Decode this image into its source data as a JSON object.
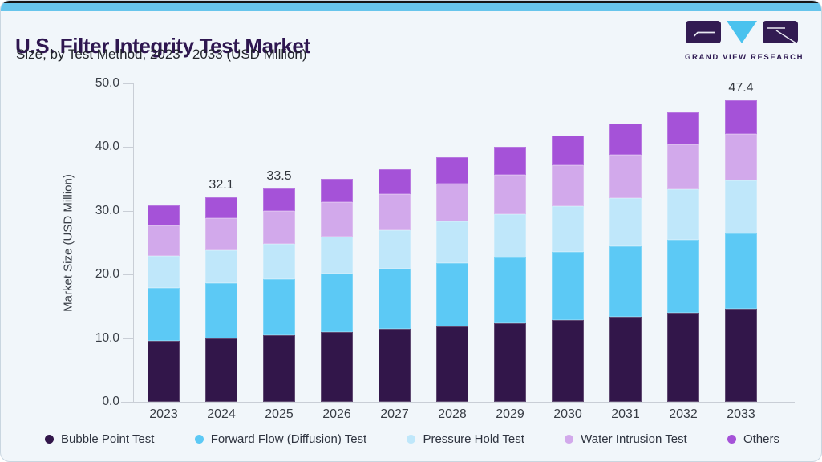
{
  "header": {
    "title": "U.S. Filter Integrity Test Market",
    "subtitle": "Size, by Test Method, 2023 - 2033 (USD Million)"
  },
  "logo": {
    "brand": "GRAND VIEW RESEARCH",
    "colors": {
      "block": "#321B52",
      "triangle": "#4AC2EE",
      "text": "#2E1A52"
    }
  },
  "palette": {
    "card_background": "#F1F6FA",
    "top_accent_bar": "#67C5EC",
    "title_color": "#2E1650",
    "axis_line": "#C9CED6",
    "label_text": "#383D45"
  },
  "chart_data": {
    "type": "bar",
    "stacked": true,
    "title": "U.S. Filter Integrity Test Market Size, by Test Method, 2023 - 2033 (USD Million)",
    "xlabel": "",
    "ylabel": "Market Size (USD Million)",
    "ylim": [
      0,
      50
    ],
    "yticks": [
      0,
      10,
      20,
      30,
      40,
      50
    ],
    "ytick_labels": [
      "0.0",
      "10.0",
      "20.0",
      "30.0",
      "40.0",
      "50.0"
    ],
    "grid": "ticks-only",
    "legend_position": "bottom",
    "categories": [
      "2023",
      "2024",
      "2025",
      "2026",
      "2027",
      "2028",
      "2029",
      "2030",
      "2031",
      "2032",
      "2033"
    ],
    "series": [
      {
        "name": "Bubble Point Test",
        "color": "#32164A",
        "values": [
          9.6,
          10.0,
          10.4,
          10.9,
          11.4,
          11.9,
          12.4,
          12.9,
          13.4,
          14.0,
          14.6
        ]
      },
      {
        "name": "Forward Flow (Diffusion) Test",
        "color": "#5CC9F5",
        "values": [
          8.3,
          8.6,
          8.9,
          9.2,
          9.5,
          9.9,
          10.3,
          10.6,
          11.0,
          11.4,
          11.8
        ]
      },
      {
        "name": "Pressure Hold Test",
        "color": "#BFE7FA",
        "values": [
          5.0,
          5.2,
          5.5,
          5.8,
          6.1,
          6.5,
          6.8,
          7.2,
          7.6,
          8.0,
          8.4
        ]
      },
      {
        "name": "Water Intrusion Test",
        "color": "#D2A9EB",
        "values": [
          4.8,
          5.0,
          5.2,
          5.4,
          5.6,
          5.9,
          6.2,
          6.5,
          6.8,
          7.0,
          7.3
        ]
      },
      {
        "name": "Others",
        "color": "#A552D8",
        "values": [
          3.2,
          3.3,
          3.5,
          3.7,
          3.9,
          4.2,
          4.4,
          4.6,
          4.9,
          5.1,
          5.3
        ]
      }
    ],
    "total_labels": {
      "2024": "32.1",
      "2025": "33.5",
      "2033": "47.4"
    }
  }
}
